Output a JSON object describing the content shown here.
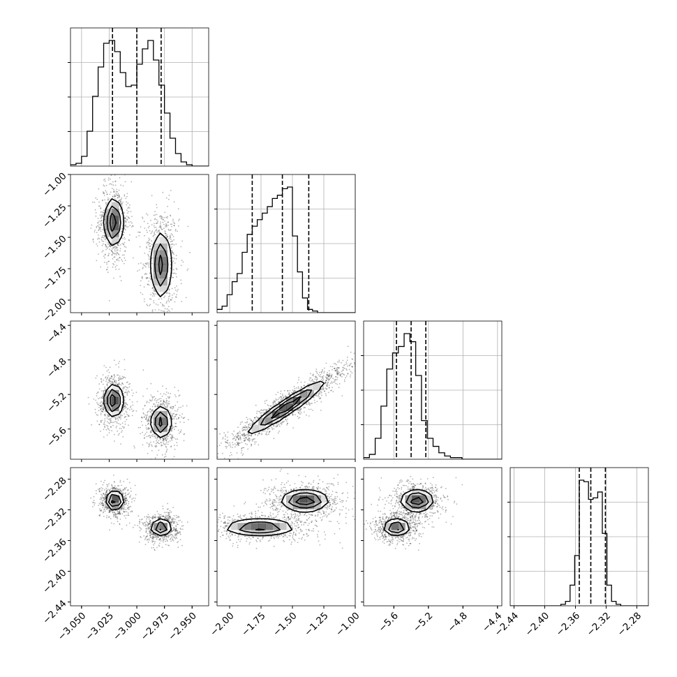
{
  "chart_data": {
    "type": "corner",
    "description_of_layout": "",
    "variables": [
      {
        "range": [
          -3.06,
          -2.935
        ],
        "ticks": [
          -3.05,
          -3.025,
          -3.0,
          -2.975,
          -2.95
        ],
        "tick_labels": [
          "−3.050",
          "−3.025",
          "−3.000",
          "−2.975",
          "−2.950"
        ],
        "quantiles": [
          -3.022,
          -3.0,
          -2.978
        ],
        "histogram": {
          "bin_edges_start": -3.06,
          "bin_width": 0.005,
          "counts": [
            1,
            2,
            7,
            25,
            50,
            71,
            88,
            90,
            82,
            67,
            57,
            58,
            73,
            84,
            90,
            76,
            58,
            38,
            20,
            9,
            3,
            1,
            0,
            0,
            0
          ]
        }
      },
      {
        "range": [
          -2.1,
          -1.0
        ],
        "ticks": [
          -2.0,
          -1.75,
          -1.5,
          -1.25,
          -1.0
        ],
        "tick_labels": [
          "−2.00",
          "−1.75",
          "−1.50",
          "−1.25",
          "−1.00"
        ],
        "quantiles": [
          -1.82,
          -1.58,
          -1.37
        ],
        "histogram": {
          "bin_edges_start": -2.1,
          "bin_width": 0.04,
          "counts": [
            2,
            4,
            11,
            19,
            24,
            37,
            48,
            53,
            57,
            61,
            65,
            70,
            72,
            76,
            77,
            47,
            25,
            9,
            2,
            1,
            0,
            0,
            0,
            0,
            0,
            0,
            0,
            0
          ]
        }
      },
      {
        "range": [
          -5.95,
          -4.35
        ],
        "ticks": [
          -5.6,
          -5.2,
          -4.8,
          -4.4
        ],
        "tick_labels": [
          "−5.6",
          "−5.2",
          "−4.8",
          "−4.4"
        ],
        "quantiles": [
          -5.57,
          -5.4,
          -5.23
        ],
        "histogram": {
          "bin_edges_start": -5.95,
          "bin_width": 0.067,
          "counts": [
            1,
            3,
            13,
            33,
            56,
            66,
            70,
            78,
            73,
            52,
            24,
            13,
            8,
            4,
            2,
            1,
            1,
            0,
            0,
            0,
            0,
            0,
            0,
            0
          ]
        }
      },
      {
        "range": [
          -2.445,
          -2.265
        ],
        "ticks": [
          -2.44,
          -2.4,
          -2.36,
          -2.32,
          -2.28
        ],
        "tick_labels": [
          "−2.44",
          "−2.40",
          "−2.36",
          "−2.32",
          "−2.28"
        ],
        "quantiles": [
          -2.355,
          -2.34,
          -2.321
        ],
        "histogram": {
          "bin_edges_start": -2.445,
          "bin_width": 0.006,
          "counts": [
            0,
            0,
            0,
            0,
            0,
            0,
            0,
            0,
            0,
            0,
            0,
            1,
            3,
            14,
            34,
            85,
            84,
            72,
            73,
            77,
            49,
            14,
            3,
            1,
            0,
            0,
            0,
            0,
            0,
            0
          ]
        }
      }
    ],
    "pair_clusters": [
      {
        "i": 1,
        "j": 0,
        "blobs": [
          [
            -3.021,
            -1.38,
            0.0055,
            0.12,
            0.0,
            1.0
          ],
          [
            -2.978,
            -1.72,
            0.006,
            0.17,
            0.0,
            0.9
          ]
        ]
      },
      {
        "i": 2,
        "j": 0,
        "blobs": [
          [
            -3.021,
            -5.27,
            0.0055,
            0.12,
            0.0,
            1.0
          ],
          [
            -2.978,
            -5.52,
            0.006,
            0.12,
            0.0,
            0.9
          ]
        ]
      },
      {
        "i": 2,
        "j": 1,
        "blobs": [
          [
            -1.55,
            -5.35,
            0.2,
            0.2,
            0.95,
            1.0
          ]
        ]
      },
      {
        "i": 3,
        "j": 0,
        "blobs": [
          [
            -3.02,
            -2.308,
            0.005,
            0.008,
            0.0,
            1.0
          ],
          [
            -2.978,
            -2.343,
            0.006,
            0.007,
            0.0,
            0.9
          ]
        ]
      },
      {
        "i": 3,
        "j": 1,
        "blobs": [
          [
            -1.4,
            -2.308,
            0.12,
            0.009,
            0.0,
            1.0
          ],
          [
            -1.76,
            -2.343,
            0.18,
            0.007,
            0.0,
            0.9
          ]
        ]
      },
      {
        "i": 3,
        "j": 2,
        "blobs": [
          [
            -5.33,
            -2.308,
            0.12,
            0.009,
            0.0,
            1.0
          ],
          [
            -5.57,
            -2.343,
            0.1,
            0.007,
            0.0,
            0.9
          ]
        ]
      }
    ],
    "grid": true,
    "quantile_line_style": "dashed",
    "colors": {
      "line": "#000000",
      "grid": "#b0b0b0",
      "scatter": "#000000",
      "density": "#000000"
    }
  }
}
